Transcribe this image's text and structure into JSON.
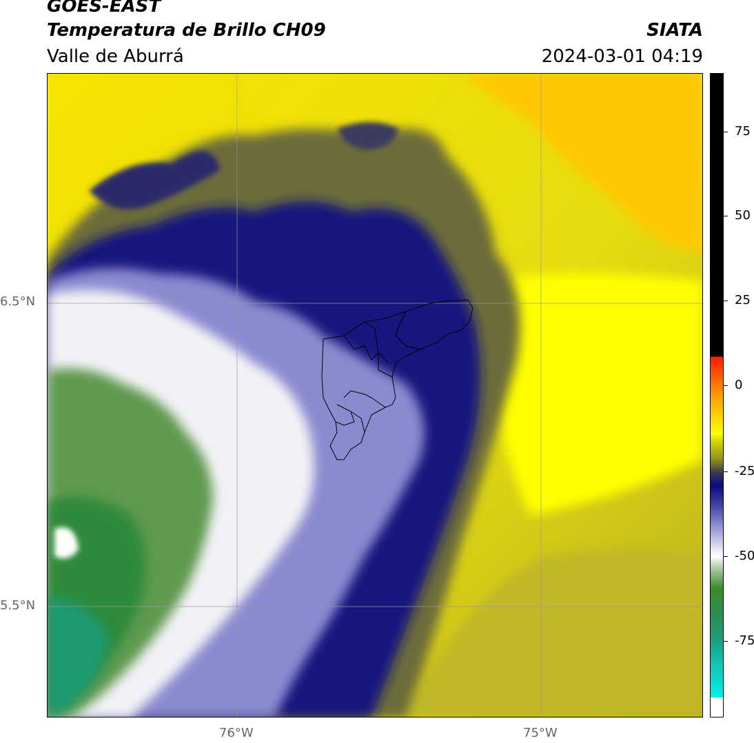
{
  "header": {
    "title": "GOES-EAST",
    "subtitle": "Temperatura de Brillo CH09",
    "region": "Valle de Aburrá",
    "organization": "SIATA",
    "timestamp": "2024-03-01 04:19"
  },
  "map": {
    "lat_labels": [
      "6.5°N",
      "5.5°N"
    ],
    "lon_labels": [
      "76°W",
      "75°W"
    ],
    "overlay": "municipal-boundaries-outline"
  },
  "colorbar": {
    "ticks": [
      "75",
      "50",
      "25",
      "0",
      "-25",
      "-50",
      "-75"
    ],
    "colors": {
      "black": "#000000",
      "red": "#ff1a00",
      "orange": "#ff8c00",
      "yellow": "#ffff00",
      "olive": "#8f8f1e",
      "navy": "#0a0a80",
      "lavender": "#a0a0d8",
      "white": "#ffffff",
      "green": "#3c8c28",
      "teal": "#1a9e7a",
      "cyan": "#00f0e8"
    }
  }
}
